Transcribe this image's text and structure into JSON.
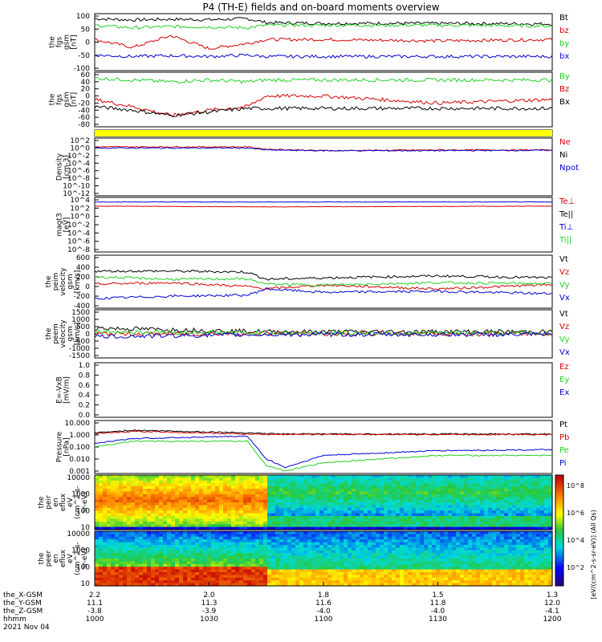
{
  "title": "P4 (TH-E) fields and on-board moments overview",
  "colors": {
    "black": "#000000",
    "red": "#d40000",
    "green": "#22d022",
    "blue": "#0000d4",
    "yellow": "#ffff00"
  },
  "panels": [
    {
      "ylabel": [
        "the",
        "fgs",
        "gsm",
        "[nT]"
      ],
      "ticks": [
        "100",
        "50",
        "0",
        "-50",
        "-100"
      ],
      "legend": [
        [
          "Bt",
          "black"
        ],
        [
          "bz",
          "red"
        ],
        [
          "by",
          "green"
        ],
        [
          "bx",
          "blue"
        ]
      ]
    },
    {
      "ylabel": [
        "the",
        "fgs",
        "gsm",
        "[nT]"
      ],
      "ticks": [
        "60",
        "40",
        "20",
        "0",
        "-20",
        "-40",
        "-60",
        "-80"
      ],
      "legend": [
        [
          "By",
          "green"
        ],
        [
          "Bz",
          "red"
        ],
        [
          "Bx",
          "black"
        ]
      ]
    },
    {
      "ylabel": [],
      "ticks": [],
      "legend": []
    },
    {
      "ylabel": [
        "Density",
        "[cm-3]"
      ],
      "ticks": [
        "10^2",
        "10^0",
        "10^-2",
        "10^-4",
        "10^-6",
        "10^-8",
        "10^-10",
        "10^-12"
      ],
      "legend": [
        [
          "Ne",
          "red"
        ],
        [
          "Ni",
          "black"
        ],
        [
          "Npot",
          "blue"
        ]
      ]
    },
    {
      "ylabel": [
        "magt3",
        "[eV]"
      ],
      "ticks": [
        "10^4",
        "10^2",
        "10^0",
        "10^-2",
        "10^-4",
        "10^-6",
        "10^-8"
      ],
      "legend": [
        [
          "Te⊥",
          "red"
        ],
        [
          "Te||",
          "black"
        ],
        [
          "Ti⊥",
          "blue"
        ],
        [
          "Ti||",
          "green"
        ]
      ]
    },
    {
      "ylabel": [
        "the",
        "peim",
        "velocity",
        "gsm",
        "[km/s]"
      ],
      "ticks": [
        "600",
        "400",
        "200",
        "0",
        "-200",
        "-400"
      ],
      "legend": [
        [
          "Vt",
          "black"
        ],
        [
          "Vz",
          "red"
        ],
        [
          "Vy",
          "green"
        ],
        [
          "Vx",
          "blue"
        ]
      ]
    },
    {
      "ylabel": [
        "the",
        "peem",
        "velocity",
        "gsm",
        "[km/s]"
      ],
      "ticks": [
        "1500",
        "1000",
        "500",
        "0",
        "-500",
        "-1000",
        "-1500"
      ],
      "legend": [
        [
          "Vt",
          "black"
        ],
        [
          "Vz",
          "red"
        ],
        [
          "Vy",
          "green"
        ],
        [
          "Vx",
          "blue"
        ]
      ]
    },
    {
      "ylabel": [
        "E=-VxB",
        "[mV/m]"
      ],
      "ticks": [
        "1.0",
        "0.8",
        "0.6",
        "0.4",
        "0.2",
        "0.0"
      ],
      "legend": [
        [
          "Ez",
          "red"
        ],
        [
          "Ey",
          "green"
        ],
        [
          "Ex",
          "blue"
        ]
      ]
    },
    {
      "ylabel": [
        "Pressure",
        "[nPa]"
      ],
      "ticks": [
        "10.000",
        "1.000",
        "0.100",
        "0.010",
        "0.001"
      ],
      "legend": [
        [
          "Pt",
          "black"
        ],
        [
          "Pb",
          "red"
        ],
        [
          "Pe",
          "green"
        ],
        [
          "Pi",
          "blue"
        ]
      ]
    },
    {
      "ylabel": [
        "the",
        "peir",
        "en",
        "eflux",
        "eV",
        "(cm^2-s-",
        "sr-eV)"
      ],
      "ticks": [
        "10000",
        "1000",
        "100",
        "10"
      ],
      "legend": []
    },
    {
      "ylabel": [
        "the",
        "peer",
        "en",
        "eflux",
        "eV",
        "(cm^2-s-",
        "sr-eV)"
      ],
      "ticks": [
        "10000",
        "1000",
        "100",
        "10"
      ],
      "legend": []
    }
  ],
  "colorbar": {
    "ticks": [
      "10^8",
      "10^6",
      "10^4",
      "10^2"
    ],
    "label": "[eV/(cm^2-s-sr-eV)] (All Qs)"
  },
  "xaxis": {
    "row_labels": [
      "the_X-GSM",
      "the_Y-GSM",
      "the_Z-GSM",
      "hhmm"
    ],
    "date": "2021 Nov 04",
    "ticks": [
      [
        "2.2",
        "11.1",
        "-3.8",
        "1000"
      ],
      [
        "2.0",
        "11.3",
        "-3.9",
        "1030"
      ],
      [
        "1.8",
        "11.6",
        "-4.0",
        "1100"
      ],
      [
        "1.5",
        "11.8",
        "-4.0",
        "1130"
      ],
      [
        "1.3",
        "12.0",
        "-4.1",
        "1200"
      ]
    ]
  },
  "chart_data": {
    "type": "line",
    "title": "P4 (TH-E) fields and on-board moments overview",
    "x_range": [
      "1000",
      "1200"
    ],
    "x_unit": "hhmm",
    "transition_time": "1045",
    "panels": [
      {
        "name": "the fgs gsm [nT]",
        "ylim": [
          -100,
          100
        ],
        "x": [
          1000,
          1010,
          1020,
          1030,
          1040,
          1045,
          1100,
          1130,
          1200
        ],
        "series": [
          {
            "name": "Bt",
            "values": [
              90,
              85,
              88,
              86,
              90,
              75,
              72,
              72,
              70
            ]
          },
          {
            "name": "bz",
            "values": [
              10,
              -20,
              25,
              -25,
              -5,
              10,
              10,
              5,
              10
            ]
          },
          {
            "name": "by",
            "values": [
              65,
              55,
              60,
              58,
              55,
              65,
              65,
              65,
              62
            ]
          },
          {
            "name": "bx",
            "values": [
              -50,
              -55,
              -52,
              -55,
              -50,
              -55,
              -55,
              -55,
              -55
            ]
          }
        ]
      },
      {
        "name": "the fgs gsm [nT]",
        "ylim": [
          -80,
          60
        ],
        "x": [
          1000,
          1010,
          1020,
          1030,
          1040,
          1045,
          1100,
          1130,
          1200
        ],
        "series": [
          {
            "name": "By",
            "values": [
              50,
              45,
              40,
              45,
              40,
              45,
              45,
              45,
              45
            ]
          },
          {
            "name": "Bz",
            "values": [
              -10,
              -30,
              -55,
              -40,
              -30,
              0,
              0,
              -20,
              -10
            ]
          },
          {
            "name": "Bx",
            "values": [
              -30,
              -40,
              -55,
              -45,
              -35,
              -35,
              -35,
              -35,
              -35
            ]
          }
        ]
      },
      {
        "name": "Density [cm-3]",
        "scale": "log",
        "ylim": [
          1e-12,
          100.0
        ],
        "x": [
          1000,
          1040,
          1045,
          1100,
          1130,
          1200
        ],
        "series": [
          {
            "name": "Ne",
            "values": [
              2,
              2,
              0.5,
              0.2,
              0.3,
              0.3
            ]
          },
          {
            "name": "Npot",
            "values": [
              1,
              1,
              0.3,
              0.2,
              0.2,
              0.25
            ]
          }
        ]
      },
      {
        "name": "magt3 [eV]",
        "scale": "log",
        "ylim": [
          1e-08,
          10000.0
        ],
        "x": [
          1000,
          1045,
          1200
        ],
        "series": [
          {
            "name": "Te⊥",
            "values": [
              300,
              200,
              300
            ]
          },
          {
            "name": "Ti⊥",
            "values": [
              3000,
              3000,
              3000
            ]
          }
        ]
      },
      {
        "name": "the peim velocity gsm [km/s]",
        "ylim": [
          -400,
          600
        ],
        "x": [
          1000,
          1020,
          1040,
          1045,
          1100,
          1130,
          1200
        ],
        "series": [
          {
            "name": "Vt",
            "values": [
              320,
              320,
              300,
              150,
              180,
              220,
              180
            ]
          },
          {
            "name": "Vz",
            "values": [
              50,
              80,
              0,
              -50,
              30,
              -50,
              40
            ]
          },
          {
            "name": "Vy",
            "values": [
              200,
              150,
              160,
              50,
              30,
              80,
              60
            ]
          },
          {
            "name": "Vx",
            "values": [
              -250,
              -200,
              -180,
              -50,
              -120,
              -100,
              -150
            ]
          }
        ]
      },
      {
        "name": "the peem velocity gsm [km/s]",
        "ylim": [
          -1500,
          1500
        ],
        "x": [
          1000,
          1045,
          1200
        ],
        "series": [
          {
            "name": "Vt",
            "values": [
              400,
              150,
              150
            ]
          },
          {
            "name": "Vz",
            "values": [
              0,
              0,
              0
            ]
          },
          {
            "name": "Vy",
            "values": [
              150,
              50,
              50
            ]
          },
          {
            "name": "Vx",
            "values": [
              -200,
              -50,
              -50
            ]
          }
        ]
      },
      {
        "name": "E=-VxB [mV/m]",
        "ylim": [
          0,
          1
        ],
        "series": []
      },
      {
        "name": "Pressure [nPa]",
        "scale": "log",
        "ylim": [
          0.001,
          10
        ],
        "x": [
          1000,
          1010,
          1040,
          1045,
          1050,
          1100,
          1130,
          1200
        ],
        "series": [
          {
            "name": "Pt",
            "values": [
              1.5,
              2.5,
              1.5,
              1.3,
              1.2,
              1.2,
              1.2,
              1.2
            ]
          },
          {
            "name": "Pb",
            "values": [
              1.2,
              2.0,
              1.2,
              1.1,
              1.1,
              1.1,
              1.1,
              1.1
            ]
          },
          {
            "name": "Pi",
            "values": [
              0.2,
              0.5,
              0.8,
              0.01,
              0.002,
              0.02,
              0.05,
              0.06
            ]
          },
          {
            "name": "Pe",
            "values": [
              0.1,
              0.3,
              0.3,
              0.003,
              0.001,
              0.005,
              0.02,
              0.02
            ]
          }
        ]
      }
    ],
    "spectrograms": [
      {
        "name": "the peir en eflux",
        "energy_ylim": [
          5,
          25000
        ],
        "scale": "log"
      },
      {
        "name": "the peer en eflux",
        "energy_ylim": [
          5,
          25000
        ],
        "scale": "log"
      }
    ]
  }
}
